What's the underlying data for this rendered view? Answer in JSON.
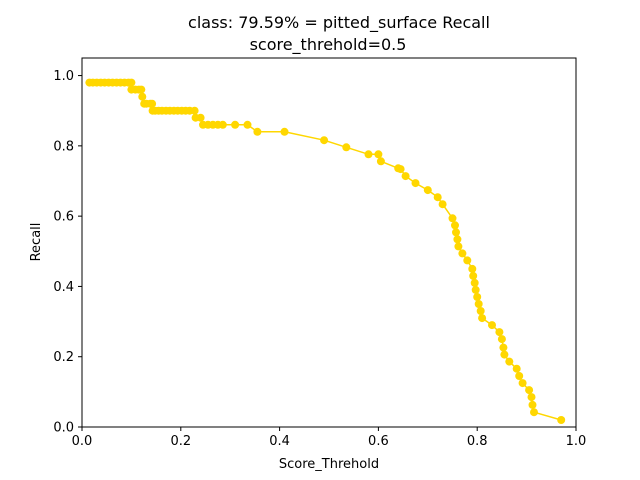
{
  "chart_data": {
    "type": "line",
    "title_line1": "class: 79.59% = pitted_surface Recall",
    "title_line2": "score_threhold=0.5",
    "xlabel": "Score_Threhold",
    "ylabel": "Recall",
    "xlim": [
      0.0,
      1.0
    ],
    "ylim": [
      0.0,
      1.05
    ],
    "xticks": [
      0.0,
      0.2,
      0.4,
      0.6,
      0.8,
      1.0
    ],
    "yticks": [
      0.0,
      0.2,
      0.4,
      0.6,
      0.8,
      1.0
    ],
    "xtick_labels": [
      "0.0",
      "0.2",
      "0.4",
      "0.6",
      "0.8",
      "1.0"
    ],
    "ytick_labels": [
      "0.0",
      "0.2",
      "0.4",
      "0.6",
      "0.8",
      "1.0"
    ],
    "grid": false,
    "series": [
      {
        "name": "pitted_surface",
        "color": "#FFD700",
        "marker": "circle",
        "x": [
          0.015,
          0.022,
          0.03,
          0.038,
          0.046,
          0.054,
          0.062,
          0.07,
          0.078,
          0.086,
          0.094,
          0.1,
          0.1,
          0.108,
          0.115,
          0.12,
          0.122,
          0.126,
          0.13,
          0.138,
          0.142,
          0.143,
          0.148,
          0.155,
          0.162,
          0.17,
          0.178,
          0.186,
          0.194,
          0.202,
          0.21,
          0.218,
          0.228,
          0.23,
          0.24,
          0.245,
          0.255,
          0.265,
          0.275,
          0.285,
          0.31,
          0.335,
          0.355,
          0.41,
          0.49,
          0.535,
          0.58,
          0.6,
          0.605,
          0.64,
          0.645,
          0.655,
          0.675,
          0.7,
          0.72,
          0.73,
          0.75,
          0.755,
          0.757,
          0.76,
          0.762,
          0.77,
          0.78,
          0.79,
          0.792,
          0.795,
          0.797,
          0.8,
          0.803,
          0.807,
          0.81,
          0.83,
          0.845,
          0.85,
          0.853,
          0.855,
          0.865,
          0.88,
          0.885,
          0.892,
          0.905,
          0.91,
          0.912,
          0.915,
          0.97
        ],
        "y": [
          0.98,
          0.98,
          0.98,
          0.98,
          0.98,
          0.98,
          0.98,
          0.98,
          0.98,
          0.98,
          0.98,
          0.98,
          0.96,
          0.96,
          0.96,
          0.96,
          0.94,
          0.92,
          0.92,
          0.92,
          0.92,
          0.9,
          0.9,
          0.9,
          0.9,
          0.9,
          0.9,
          0.9,
          0.9,
          0.9,
          0.9,
          0.9,
          0.9,
          0.88,
          0.88,
          0.86,
          0.86,
          0.86,
          0.86,
          0.86,
          0.86,
          0.86,
          0.84,
          0.84,
          0.816,
          0.796,
          0.776,
          0.776,
          0.756,
          0.736,
          0.734,
          0.714,
          0.694,
          0.674,
          0.654,
          0.634,
          0.594,
          0.574,
          0.554,
          0.534,
          0.514,
          0.494,
          0.474,
          0.45,
          0.43,
          0.41,
          0.39,
          0.37,
          0.35,
          0.33,
          0.31,
          0.29,
          0.27,
          0.25,
          0.226,
          0.206,
          0.186,
          0.166,
          0.145,
          0.125,
          0.105,
          0.085,
          0.063,
          0.042,
          0.02
        ]
      }
    ]
  }
}
